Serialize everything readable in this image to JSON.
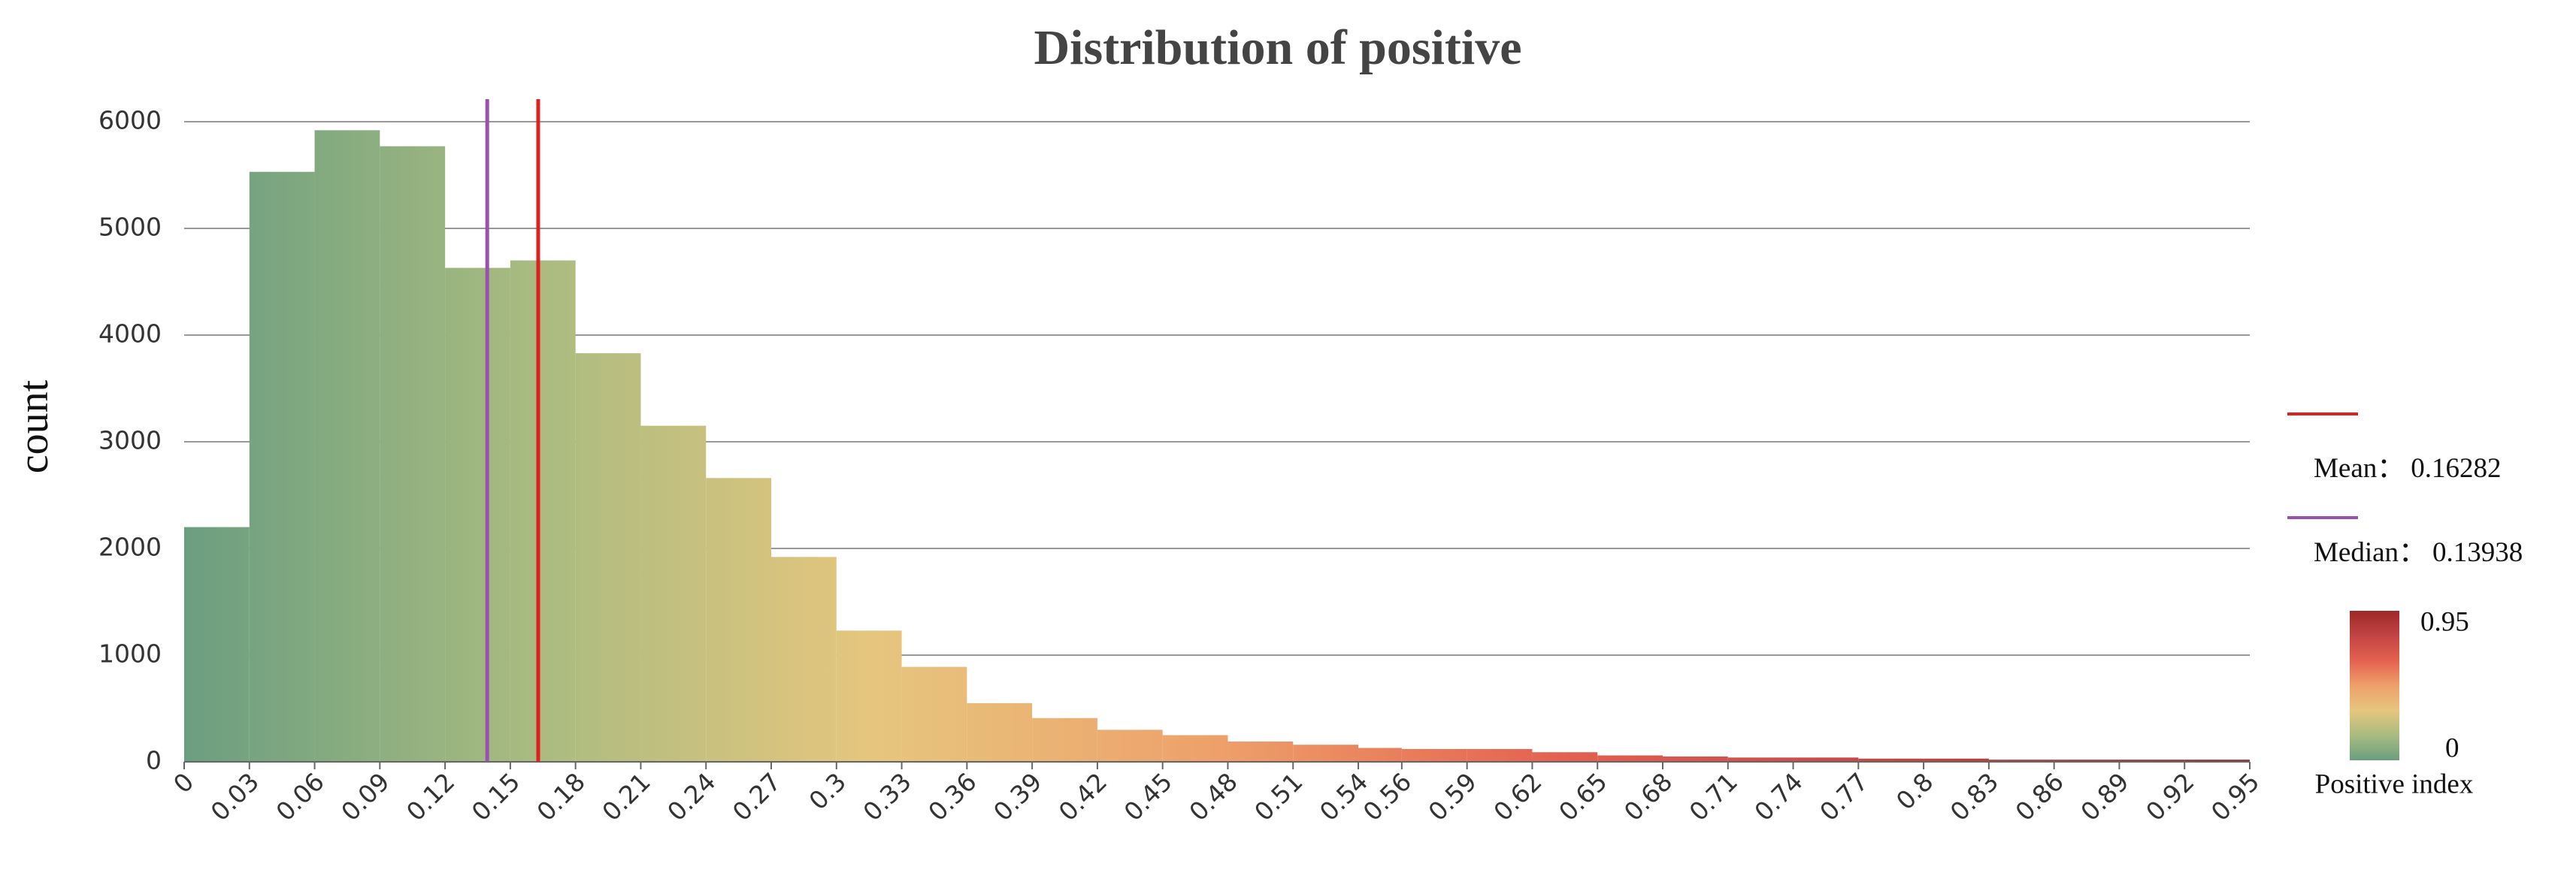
{
  "chart_data": {
    "type": "histogram",
    "title": "Distribution of positive",
    "ylabel": "count",
    "bins": [
      0,
      0.03,
      0.06,
      0.09,
      0.12,
      0.15,
      0.18,
      0.21,
      0.24,
      0.27,
      0.3,
      0.33,
      0.36,
      0.39,
      0.42,
      0.45,
      0.48,
      0.51,
      0.54,
      0.56,
      0.59,
      0.62,
      0.65,
      0.68,
      0.71,
      0.74,
      0.77,
      0.8,
      0.83,
      0.86,
      0.89,
      0.92,
      0.95
    ],
    "counts": [
      2200,
      5530,
      5920,
      5770,
      4630,
      4700,
      3830,
      3150,
      2660,
      1920,
      1230,
      890,
      550,
      410,
      300,
      250,
      190,
      160,
      130,
      120,
      120,
      90,
      60,
      50,
      40,
      40,
      30,
      30,
      20,
      20,
      20,
      20
    ],
    "xlim": [
      0,
      0.95
    ],
    "ylim": [
      0,
      6000
    ],
    "yticks": [
      0,
      1000,
      2000,
      3000,
      4000,
      5000,
      6000
    ],
    "grid": true,
    "colormap": [
      "#6b9e80",
      "#a8bb80",
      "#e6c67e",
      "#eea06a",
      "#e4614f",
      "#c24444",
      "#a02828"
    ],
    "mean": {
      "label": "Mean：",
      "value": 0.16282,
      "color": "#e02020"
    },
    "median": {
      "label": "Median：",
      "value": 0.13938,
      "color": "#9b4fb0"
    },
    "colorbar": {
      "title": "Positive index",
      "range": [
        0,
        0.95
      ]
    }
  }
}
